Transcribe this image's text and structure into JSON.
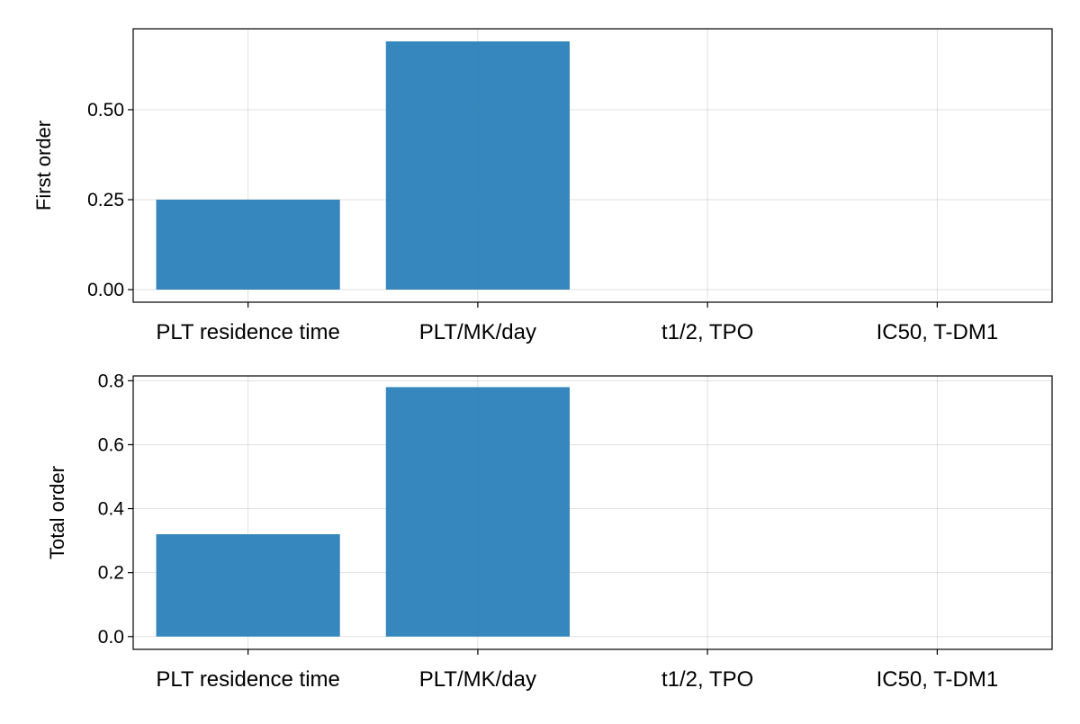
{
  "chart_data": [
    {
      "type": "bar",
      "categories": [
        "PLT residence time",
        "PLT/MK/day",
        "t1/2, TPO",
        "IC50, T-DM1"
      ],
      "values": [
        0.25,
        0.69,
        0.0,
        0.0
      ],
      "ylabel": "First order",
      "ylim": [
        -0.035,
        0.725
      ],
      "yticks": [
        0.0,
        0.25,
        0.5
      ],
      "ytick_labels": [
        "0.00",
        "0.25",
        "0.50"
      ],
      "grid": true,
      "bar_color": "#2980b9"
    },
    {
      "type": "bar",
      "categories": [
        "PLT residence time",
        "PLT/MK/day",
        "t1/2, TPO",
        "IC50, T-DM1"
      ],
      "values": [
        0.32,
        0.78,
        0.0,
        0.0
      ],
      "ylabel": "Total order",
      "ylim": [
        -0.04,
        0.815
      ],
      "yticks": [
        0.0,
        0.2,
        0.4,
        0.6,
        0.8
      ],
      "ytick_labels": [
        "0.0",
        "0.2",
        "0.4",
        "0.6",
        "0.8"
      ],
      "grid": true,
      "bar_color": "#2980b9"
    }
  ]
}
